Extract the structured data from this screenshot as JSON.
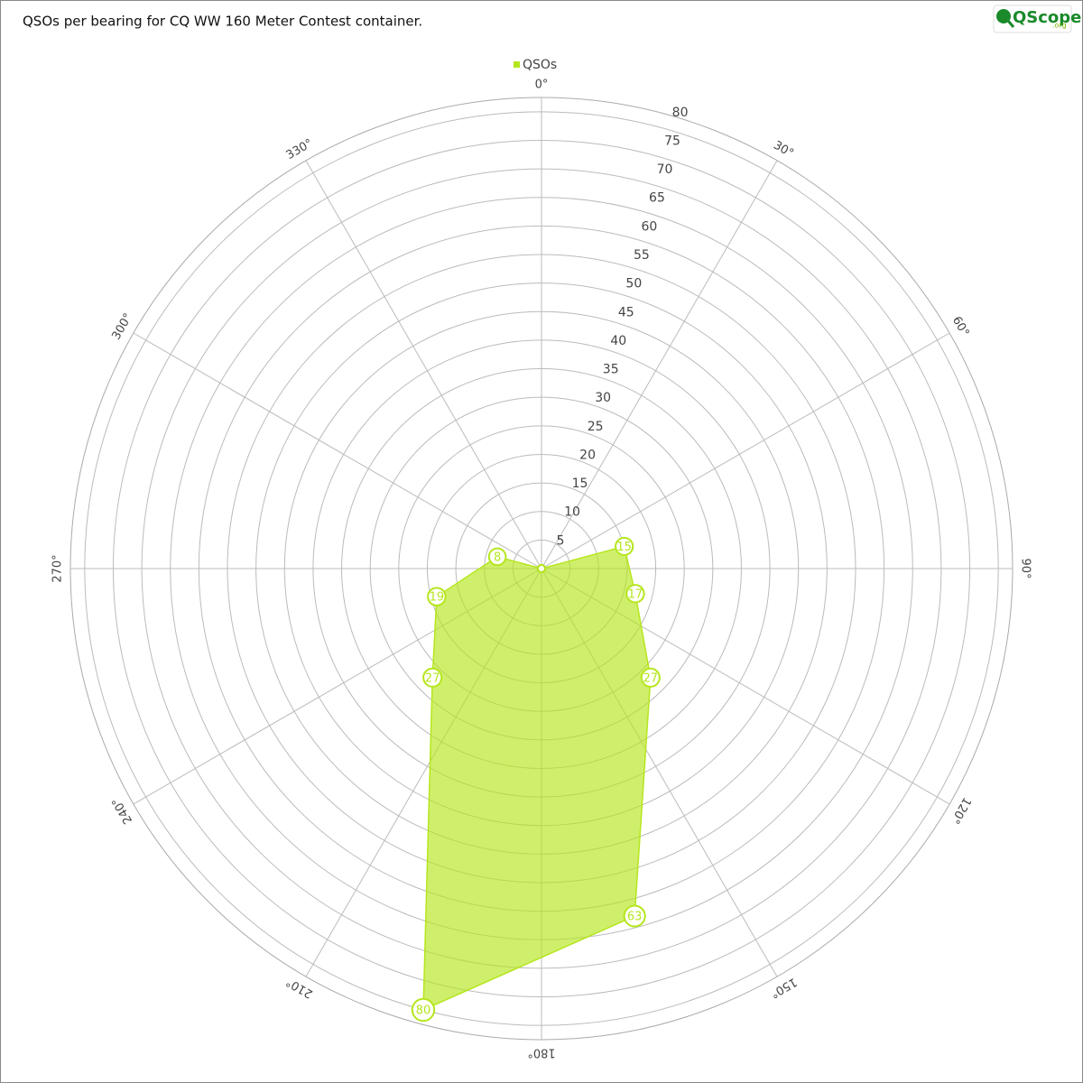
{
  "chart_data": {
    "type": "polar-area",
    "title": "QSOs per bearing for CQ WW 160 Meter Contest container.",
    "logo": "QScope",
    "logo_suffix": ".org",
    "series": [
      {
        "name": "QSOs",
        "color": "#b5e61d",
        "x": [
          15,
          45,
          75,
          105,
          135,
          165,
          195,
          225,
          255,
          285,
          315,
          345
        ],
        "values": [
          0,
          0,
          15,
          17,
          27,
          63,
          80,
          27,
          19,
          8,
          0,
          0
        ]
      }
    ],
    "xlim": [
      0,
      360
    ],
    "xticks": [
      {
        "value": 0,
        "label": "0°"
      },
      {
        "value": 30,
        "label": "30°"
      },
      {
        "value": 60,
        "label": "60°"
      },
      {
        "value": 90,
        "label": "90°"
      },
      {
        "value": 120,
        "label": "120°"
      },
      {
        "value": 150,
        "label": "150°"
      },
      {
        "value": 180,
        "label": "180°"
      },
      {
        "value": 210,
        "label": "210°"
      },
      {
        "value": 240,
        "label": "240°"
      },
      {
        "value": 270,
        "label": "270°"
      },
      {
        "value": 300,
        "label": "300°"
      },
      {
        "value": 330,
        "label": "330°"
      }
    ],
    "ylim": [
      0,
      82.5
    ],
    "yticks": [
      5,
      10,
      15,
      20,
      25,
      30,
      35,
      40,
      45,
      50,
      55,
      60,
      65,
      70,
      75,
      80
    ],
    "grid": true,
    "legend": "top"
  }
}
